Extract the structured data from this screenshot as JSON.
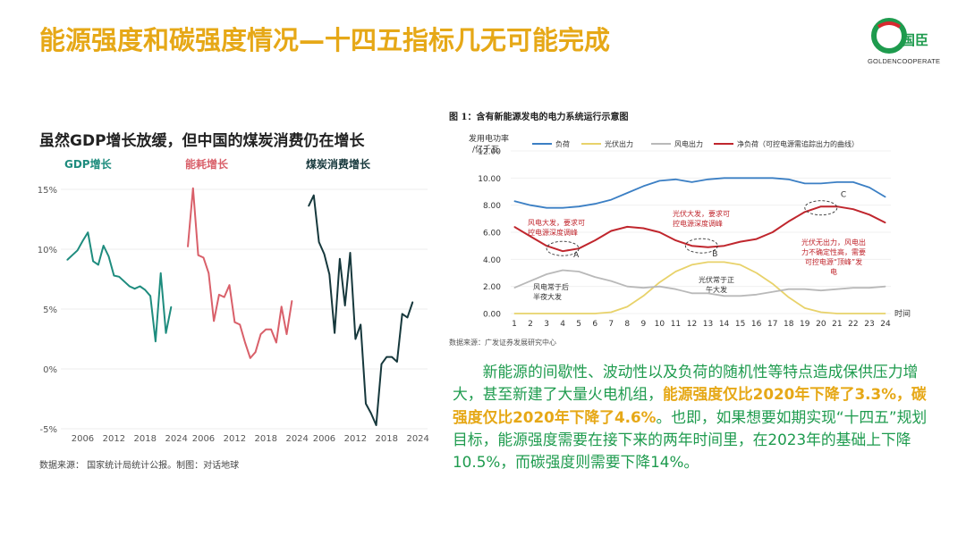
{
  "title": "能源强度和碳强度情况—十四五指标几无可能完成",
  "logo": {
    "brand_cn": "国臣",
    "brand_en": "GOLDENCOOPERATE",
    "colors": {
      "green": "#1E9B4E",
      "red": "#D7282F"
    }
  },
  "subtitle": "虽然GDP增长放缓，但中国的煤炭消费仍在增长",
  "source_left": "数据来源： 国家统计局统计公报。制图：对话地球",
  "colors": {
    "gdp": "#1E8C7E",
    "energy": "#D9606A",
    "coal": "#16383C",
    "title": "#E6A817",
    "text_green": "#1E9B4E"
  },
  "chart_data": [
    {
      "type": "line",
      "title": "GDP增长",
      "x": [
        2003,
        2004,
        2005,
        2006,
        2007,
        2008,
        2009,
        2010,
        2011,
        2012,
        2013,
        2014,
        2015,
        2016,
        2017,
        2018,
        2019,
        2020,
        2021,
        2022,
        2023
      ],
      "values": [
        9.1,
        9.5,
        9.9,
        10.7,
        11.4,
        9.0,
        8.7,
        10.3,
        9.4,
        7.8,
        7.7,
        7.3,
        6.9,
        6.7,
        6.9,
        6.6,
        6.1,
        2.3,
        8.0,
        3.0,
        5.2
      ],
      "ylim": [
        -5,
        15
      ],
      "yticks": [
        "15%",
        "10%",
        "5%",
        "0%",
        "-5%"
      ],
      "xticks": [
        "2006",
        "2012",
        "2018",
        "2024"
      ]
    },
    {
      "type": "line",
      "title": "能耗增长",
      "x": [
        2003,
        2004,
        2005,
        2006,
        2007,
        2008,
        2009,
        2010,
        2011,
        2012,
        2013,
        2014,
        2015,
        2016,
        2017,
        2018,
        2019,
        2020,
        2021,
        2022,
        2023
      ],
      "values": [
        10.2,
        15.1,
        9.5,
        9.3,
        8.0,
        4.0,
        6.2,
        6.0,
        7.0,
        3.9,
        3.7,
        2.2,
        0.9,
        1.4,
        2.9,
        3.3,
        3.3,
        2.2,
        5.2,
        2.9,
        5.7
      ],
      "ylim": [
        -5,
        15
      ],
      "xticks": [
        "2006",
        "2012",
        "2018",
        "2024"
      ]
    },
    {
      "type": "line",
      "title": "煤炭消费增长",
      "x": [
        2003,
        2004,
        2005,
        2006,
        2007,
        2008,
        2009,
        2010,
        2011,
        2012,
        2013,
        2014,
        2015,
        2016,
        2017,
        2018,
        2019,
        2020,
        2021,
        2022,
        2023
      ],
      "values": [
        13.6,
        14.5,
        10.6,
        9.6,
        7.9,
        3.0,
        9.2,
        5.3,
        9.7,
        2.5,
        3.7,
        -2.9,
        -3.7,
        -4.7,
        0.4,
        1.0,
        1.0,
        0.6,
        4.6,
        4.3,
        5.6
      ],
      "ylim": [
        -5,
        15
      ],
      "xticks": [
        "2006",
        "2012",
        "2018",
        "2024"
      ]
    },
    {
      "type": "line",
      "title": "图 1：含有新能源发电的电力系统运行示意图",
      "ylabel": "发用电功率/亿千瓦",
      "xlabel": "时间",
      "x": [
        1,
        2,
        3,
        4,
        5,
        6,
        7,
        8,
        9,
        10,
        11,
        12,
        13,
        14,
        15,
        16,
        17,
        18,
        19,
        20,
        21,
        22,
        23,
        24
      ],
      "ylim": [
        0,
        12
      ],
      "yticks": [
        "12.00",
        "10.00",
        "8.00",
        "6.00",
        "4.00",
        "2.00",
        "0.00"
      ],
      "series": [
        {
          "name": "负荷",
          "color": "#3B7FC4",
          "values": [
            8.3,
            8.0,
            7.8,
            7.8,
            7.9,
            8.1,
            8.4,
            8.9,
            9.4,
            9.8,
            9.9,
            9.7,
            9.9,
            10.0,
            10.0,
            10.0,
            10.0,
            9.9,
            9.6,
            9.6,
            9.7,
            9.7,
            9.3,
            8.6
          ]
        },
        {
          "name": "光伏出力",
          "color": "#E8D26A",
          "values": [
            0,
            0,
            0,
            0,
            0,
            0,
            0.1,
            0.5,
            1.3,
            2.3,
            3.1,
            3.6,
            3.8,
            3.8,
            3.6,
            3.0,
            2.2,
            1.2,
            0.4,
            0.1,
            0,
            0,
            0,
            0
          ]
        },
        {
          "name": "风电出力",
          "color": "#B9B9B9",
          "values": [
            1.9,
            2.4,
            2.9,
            3.2,
            3.1,
            2.7,
            2.4,
            2.0,
            1.9,
            2.0,
            1.8,
            1.5,
            1.5,
            1.3,
            1.3,
            1.4,
            1.6,
            1.8,
            1.8,
            1.7,
            1.8,
            1.9,
            1.9,
            2.0
          ]
        },
        {
          "name": "净负荷（可控电源需追踪出力的曲线）",
          "color": "#C0262D",
          "values": [
            6.4,
            5.7,
            5.0,
            4.6,
            4.8,
            5.4,
            6.1,
            6.4,
            6.3,
            6.0,
            5.4,
            5.0,
            4.9,
            5.0,
            5.3,
            5.5,
            6.0,
            6.8,
            7.5,
            7.9,
            7.9,
            7.7,
            7.3,
            6.7
          ]
        }
      ],
      "annotations": {
        "a_text": "风电大发，要求可控电源深度调峰",
        "b_text": "光伏大发，要求可控电源深度调峰",
        "c_text": "光伏无出力，风电出力不确定性高，需要可控电源“顶峰”发电",
        "d_text": "风电常于后半夜大发",
        "e_text": "光伏常于正午大发",
        "label_a": "A",
        "label_b": "B",
        "label_c": "C"
      }
    }
  ],
  "fig": {
    "title": "图 1：含有新能源发电的电力系统运行示意图",
    "source": "数据来源：广发证券发展研究中心",
    "legend": [
      "负荷",
      "光伏出力",
      "风电出力",
      "净负荷（可控电源需追踪出力的曲线）"
    ],
    "ylabel_line1": "发用电功率",
    "ylabel_line2": "/亿千瓦",
    "xlabel": "时间"
  },
  "para": {
    "p1": "新能源的间歇性、波动性以及负荷的随机性等特点造成保供压力增大，甚至新建了大量火电机组，",
    "h1": "能源强度仅比2020年下降了3.3%",
    "p2": "，",
    "h2": "碳强度仅比2020年下降了4.6%",
    "p3": "。也即，如果想要如期实现“十四五”规划目标，能源强度需要在接下来的两年时间里，在2023年的基础上下降10.5%，而碳强度则需要下降14%。"
  }
}
